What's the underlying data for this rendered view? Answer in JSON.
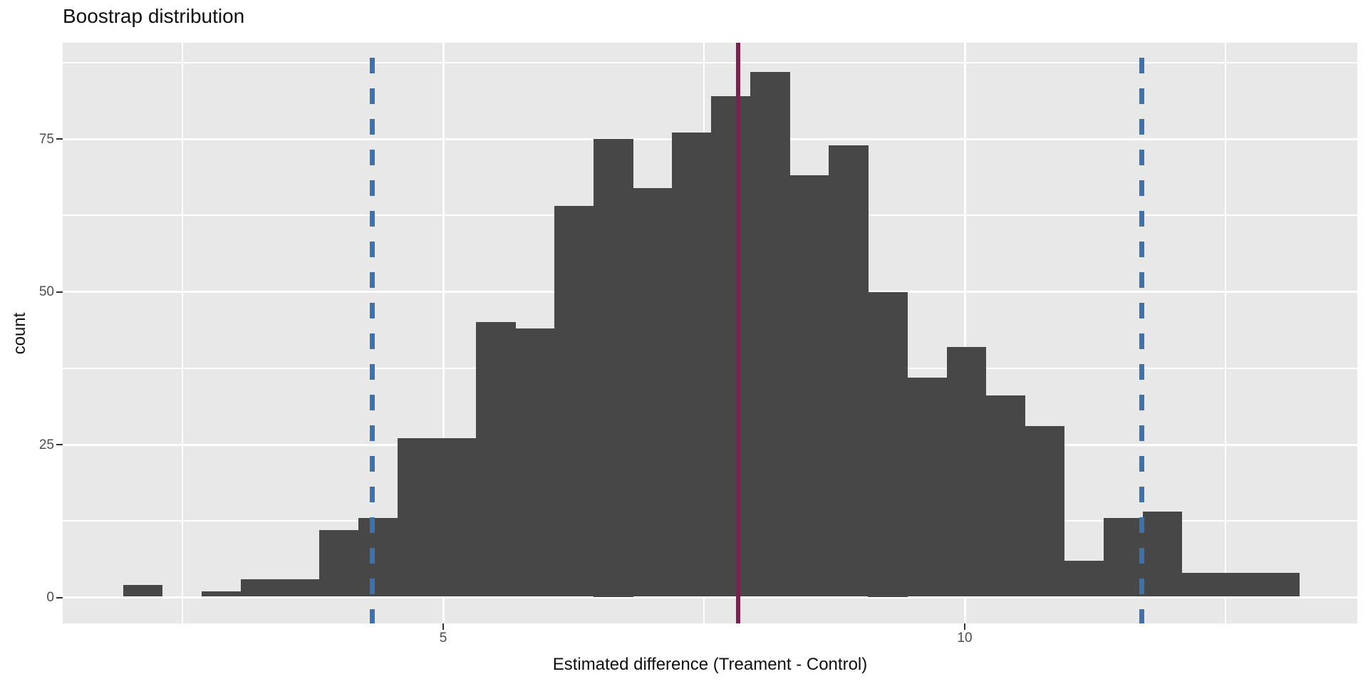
{
  "page": {
    "background": "#ffffff"
  },
  "chart_data": {
    "type": "histogram",
    "title": "Boostrap distribution",
    "xlabel": "Estimated difference (Treament - Control)",
    "ylabel": "count",
    "x_axis": {
      "ticks": [
        {
          "value": 5,
          "label": "5"
        },
        {
          "value": 10,
          "label": "10"
        }
      ],
      "minor_gridlines": [
        2.5,
        7.5,
        12.5
      ],
      "range": [
        1.35,
        13.76
      ]
    },
    "y_axis": {
      "ticks": [
        {
          "value": 0,
          "label": "0"
        },
        {
          "value": 25,
          "label": "25"
        },
        {
          "value": 50,
          "label": "50"
        },
        {
          "value": 75,
          "label": "75"
        }
      ],
      "minor_gridlines": [
        12.5,
        37.5,
        62.5,
        87.5
      ],
      "range": [
        -4.25,
        90.7
      ]
    },
    "bins": {
      "start": 1.93,
      "width": 0.376,
      "counts": [
        2,
        0,
        1,
        3,
        3,
        11,
        13,
        26,
        26,
        45,
        44,
        64,
        75,
        67,
        76,
        82,
        86,
        69,
        74,
        50,
        36,
        41,
        33,
        28,
        6,
        13,
        14,
        4,
        4,
        4
      ]
    },
    "vlines": [
      {
        "name": "ci-lower-line",
        "x": 4.32,
        "style": "dashed",
        "color": "#3c72ad"
      },
      {
        "name": "point-estimate-line",
        "x": 7.83,
        "style": "solid",
        "color": "#7b2150"
      },
      {
        "name": "ci-upper-line",
        "x": 11.7,
        "style": "dashed",
        "color": "#3c72ad"
      }
    ],
    "colors": {
      "bar": "#474747",
      "panel_background": "#e8e8e8",
      "gridline": "#ffffff",
      "tick_text": "#4d4d4d",
      "text": "#111111"
    },
    "grid": "on",
    "legend": "none"
  }
}
